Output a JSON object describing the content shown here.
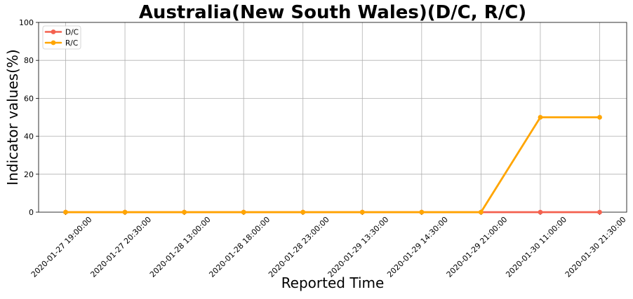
{
  "chart_data": {
    "type": "line",
    "title": "Australia(New South Wales)(D/C, R/C)",
    "xlabel": "Reported Time",
    "ylabel": "Indicator values(%)",
    "categories": [
      "2020-01-27 19:00:00",
      "2020-01-27 20:30:00",
      "2020-01-28 13:00:00",
      "2020-01-28 18:00:00",
      "2020-01-28 23:00:00",
      "2020-01-29 13:30:00",
      "2020-01-29 14:30:00",
      "2020-01-29 21:00:00",
      "2020-01-30 11:00:00",
      "2020-01-30 21:30:00"
    ],
    "ylim": [
      0,
      100
    ],
    "yticks": [
      0,
      20,
      40,
      60,
      80,
      100
    ],
    "grid": true,
    "legend_position": "top-left",
    "series": [
      {
        "name": "D/C",
        "color": "#f4614f",
        "values": [
          0,
          0,
          0,
          0,
          0,
          0,
          0,
          0,
          0,
          0
        ]
      },
      {
        "name": "R/C",
        "color": "#ffa500",
        "values": [
          0,
          0,
          0,
          0,
          0,
          0,
          0,
          0,
          50,
          50
        ]
      }
    ]
  }
}
